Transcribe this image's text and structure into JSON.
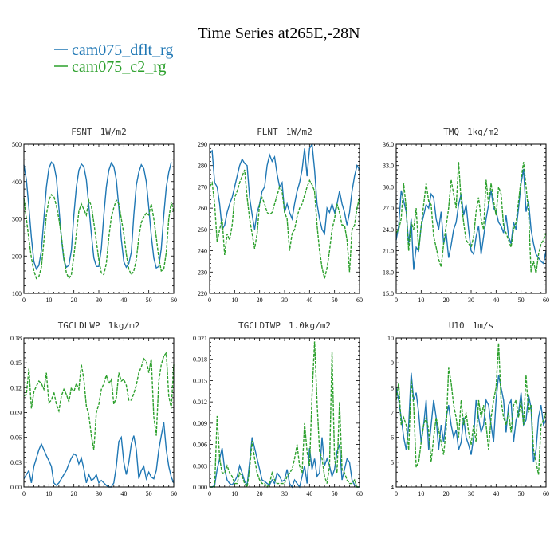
{
  "title": "Time Series at265E,-28N",
  "legend": [
    {
      "label": "cam075_dflt_rg",
      "color": "#1f77b4"
    },
    {
      "label": "cam075_c2_rg",
      "color": "#2ca02c"
    }
  ],
  "chart_data": [
    {
      "type": "line",
      "title": "FSNT",
      "units": "1W/m2",
      "xlim": [
        0,
        60
      ],
      "xticks": [
        0,
        10,
        20,
        30,
        40,
        50,
        60
      ],
      "ylim": [
        100,
        500
      ],
      "yticks": [
        100,
        200,
        300,
        400,
        500
      ],
      "ytick_labels": [
        "100",
        "200",
        "300",
        "400",
        "500"
      ],
      "series": [
        {
          "name": "cam075_dflt_rg",
          "values": [
            445,
            405,
            330,
            250,
            185,
            165,
            175,
            215,
            300,
            385,
            435,
            452,
            445,
            410,
            330,
            250,
            190,
            170,
            175,
            215,
            310,
            385,
            430,
            447,
            440,
            405,
            335,
            260,
            195,
            172,
            172,
            220,
            310,
            385,
            430,
            450,
            440,
            405,
            330,
            245,
            185,
            170,
            180,
            210,
            310,
            390,
            425,
            445,
            435,
            400,
            330,
            255,
            195,
            168,
            172,
            220,
            310,
            385,
            425,
            452
          ]
        },
        {
          "name": "cam075_c2_rg",
          "values": [
            355,
            300,
            245,
            195,
            160,
            140,
            145,
            170,
            240,
            310,
            350,
            365,
            360,
            335,
            300,
            255,
            195,
            155,
            140,
            150,
            200,
            260,
            320,
            340,
            325,
            310,
            350,
            335,
            290,
            240,
            190,
            155,
            150,
            180,
            250,
            305,
            330,
            350,
            340,
            300,
            260,
            205,
            165,
            150,
            160,
            190,
            250,
            290,
            305,
            315,
            310,
            340,
            300,
            250,
            195,
            160,
            165,
            210,
            300,
            345,
            320
          ]
        }
      ]
    },
    {
      "type": "line",
      "title": "FLNT",
      "units": "1W/m2",
      "xlim": [
        0,
        60
      ],
      "xticks": [
        0,
        10,
        20,
        30,
        40,
        50,
        60
      ],
      "ylim": [
        220,
        290
      ],
      "yticks": [
        220,
        230,
        240,
        250,
        260,
        270,
        280,
        290
      ],
      "ytick_labels": [
        "220",
        "230",
        "240",
        "250",
        "260",
        "270",
        "280",
        "290"
      ],
      "series": [
        {
          "name": "cam075_dflt_rg",
          "values": [
            286,
            287,
            272,
            270,
            262,
            250,
            252,
            258,
            262,
            265,
            270,
            275,
            280,
            283,
            281,
            280,
            265,
            257,
            250,
            258,
            262,
            268,
            270,
            280,
            285,
            282,
            284,
            276,
            270,
            272,
            258,
            262,
            258,
            255,
            262,
            268,
            272,
            278,
            288,
            275,
            288,
            290,
            278,
            262,
            255,
            250,
            248,
            260,
            258,
            262,
            258,
            262,
            268,
            262,
            258,
            252,
            258,
            268,
            275,
            280,
            278
          ]
        },
        {
          "name": "cam075_c2_rg",
          "values": [
            270,
            272,
            262,
            244,
            250,
            255,
            238,
            248,
            245,
            252,
            265,
            268,
            272,
            275,
            278,
            265,
            255,
            248,
            241,
            248,
            262,
            265,
            262,
            258,
            257,
            258,
            262,
            266,
            270,
            268,
            258,
            255,
            240,
            248,
            250,
            256,
            260,
            262,
            266,
            270,
            273,
            271,
            268,
            252,
            240,
            232,
            227,
            232,
            240,
            250,
            255,
            262,
            258,
            252,
            252,
            245,
            230,
            250,
            252,
            260,
            265
          ]
        }
      ]
    },
    {
      "type": "line",
      "title": "TMQ",
      "units": "1kg/m2",
      "xlim": [
        0,
        60
      ],
      "xticks": [
        0,
        10,
        20,
        30,
        40,
        50,
        60
      ],
      "ylim": [
        15,
        36
      ],
      "yticks": [
        15,
        18,
        21,
        24,
        27,
        30,
        33,
        36
      ],
      "ytick_labels": [
        "15.0",
        "18.0",
        "21.0",
        "24.0",
        "27.0",
        "30.0",
        "33.0",
        "36.0"
      ],
      "series": [
        {
          "name": "cam075_dflt_rg",
          "values": [
            22.5,
            24.5,
            29.5,
            28.0,
            26.5,
            22.0,
            25.5,
            18.3,
            21.5,
            21.0,
            24.5,
            26.0,
            27.5,
            27.0,
            29.0,
            28.5,
            25.5,
            24.0,
            26.5,
            22.0,
            23.5,
            20.0,
            21.8,
            24.0,
            25.0,
            27.5,
            29.0,
            26.0,
            27.5,
            24.0,
            21.0,
            20.5,
            23.0,
            24.5,
            20.5,
            23.0,
            25.5,
            27.5,
            29.5,
            27.0,
            26.5,
            25.0,
            24.5,
            23.5,
            26.0,
            23.0,
            22.0,
            25.0,
            24.0,
            27.0,
            30.5,
            32.5,
            26.5,
            28.0,
            24.0,
            22.0,
            20.5,
            20.0,
            19.5,
            19.2,
            21.0
          ]
        },
        {
          "name": "cam075_c2_rg",
          "values": [
            23.5,
            24.0,
            25.5,
            30.5,
            27.0,
            21.0,
            25.0,
            24.0,
            27.0,
            21.0,
            24.5,
            27.5,
            30.5,
            28.0,
            27.5,
            23.0,
            21.5,
            19.8,
            18.7,
            22.0,
            24.5,
            27.0,
            31.0,
            29.0,
            27.0,
            33.5,
            28.0,
            25.0,
            22.5,
            22.0,
            21.5,
            23.0,
            26.5,
            28.5,
            25.5,
            24.0,
            31.0,
            27.5,
            30.5,
            28.0,
            26.0,
            30.0,
            29.0,
            24.5,
            23.5,
            22.5,
            21.5,
            24.0,
            25.0,
            28.0,
            31.0,
            33.5,
            30.0,
            26.5,
            18.0,
            19.5,
            17.8,
            20.5,
            22.0,
            22.5,
            23.5
          ]
        }
      ]
    },
    {
      "type": "line",
      "title": "TGCLDLWP",
      "units": "1kg/m2",
      "xlim": [
        0,
        60
      ],
      "xticks": [
        0,
        10,
        20,
        30,
        40,
        50,
        60
      ],
      "ylim": [
        0,
        0.18
      ],
      "yticks": [
        0,
        0.03,
        0.06,
        0.09,
        0.12,
        0.15,
        0.18
      ],
      "ytick_labels": [
        "0.00",
        "0.03",
        "0.06",
        "0.09",
        "0.12",
        "0.15",
        "0.18"
      ],
      "series": [
        {
          "name": "cam075_dflt_rg",
          "values": [
            0.01,
            0.015,
            0.02,
            0.005,
            0.025,
            0.035,
            0.045,
            0.052,
            0.045,
            0.038,
            0.032,
            0.025,
            0.005,
            0.002,
            0.005,
            0.01,
            0.015,
            0.02,
            0.028,
            0.035,
            0.04,
            0.038,
            0.028,
            0.035,
            0.022,
            0.005,
            0.015,
            0.008,
            0.01,
            0.015,
            0.005,
            0.008,
            0.005,
            0.002,
            0.0,
            0.0,
            0.005,
            0.025,
            0.055,
            0.06,
            0.03,
            0.015,
            0.03,
            0.052,
            0.062,
            0.045,
            0.01,
            0.02,
            0.025,
            0.01,
            0.018,
            0.012,
            0.01,
            0.02,
            0.045,
            0.062,
            0.078,
            0.045,
            0.025,
            0.012,
            0.005
          ]
        },
        {
          "name": "cam075_c2_rg",
          "values": [
            0.11,
            0.112,
            0.143,
            0.095,
            0.115,
            0.122,
            0.128,
            0.125,
            0.118,
            0.138,
            0.102,
            0.105,
            0.115,
            0.1,
            0.092,
            0.11,
            0.118,
            0.112,
            0.103,
            0.12,
            0.115,
            0.125,
            0.118,
            0.148,
            0.13,
            0.098,
            0.087,
            0.062,
            0.045,
            0.09,
            0.1,
            0.118,
            0.125,
            0.135,
            0.125,
            0.13,
            0.1,
            0.108,
            0.138,
            0.128,
            0.13,
            0.123,
            0.105,
            0.105,
            0.113,
            0.123,
            0.138,
            0.145,
            0.155,
            0.152,
            0.138,
            0.155,
            0.085,
            0.062,
            0.128,
            0.148,
            0.158,
            0.162,
            0.11,
            0.095,
            0.148
          ]
        }
      ]
    },
    {
      "type": "line",
      "title": "TGCLDIWP",
      "units": "1.0kg/m2",
      "xlim": [
        0,
        60
      ],
      "xticks": [
        0,
        10,
        20,
        30,
        40,
        50,
        60
      ],
      "ylim": [
        0,
        0.021
      ],
      "yticks": [
        0,
        0.003,
        0.006,
        0.009,
        0.012,
        0.015,
        0.018,
        0.021
      ],
      "ytick_labels": [
        "0.000",
        "0.003",
        "0.006",
        "0.009",
        "0.012",
        "0.015",
        "0.018",
        "0.021"
      ],
      "series": [
        {
          "name": "cam075_dflt_rg",
          "values": [
            0.0,
            0.0,
            0.0002,
            0.0025,
            0.004,
            0.0055,
            0.0025,
            0.001,
            0.0005,
            0.0003,
            0.0008,
            0.0015,
            0.003,
            0.002,
            0.0008,
            0.0003,
            0.0035,
            0.007,
            0.0055,
            0.004,
            0.0025,
            0.001,
            0.0008,
            0.0005,
            0.0003,
            0.001,
            0.0005,
            0.002,
            0.0015,
            0.0008,
            0.001,
            0.0025,
            0.0005,
            0.0,
            0.001,
            0.0005,
            0.0,
            0.0015,
            0.003,
            0.0005,
            0.0055,
            0.0025,
            0.004,
            0.0015,
            0.002,
            0.007,
            0.003,
            0.004,
            0.003,
            0.0015,
            0.0025,
            0.005,
            0.006,
            0.001,
            0.0025,
            0.004,
            0.0035,
            0.001,
            0.0003,
            0.0,
            0.0
          ]
        },
        {
          "name": "cam075_c2_rg",
          "values": [
            0.0,
            0.0,
            0.0,
            0.01,
            0.004,
            0.002,
            0.002,
            0.003,
            0.002,
            0.0015,
            0.0005,
            0.0005,
            0.002,
            0.0015,
            0.0005,
            0.0,
            0.0025,
            0.0065,
            0.004,
            0.002,
            0.001,
            0.0005,
            0.0005,
            0.0,
            0.0005,
            0.002,
            0.001,
            0.0005,
            0.0005,
            0.0005,
            0.0005,
            0.0015,
            0.002,
            0.0025,
            0.004,
            0.006,
            0.003,
            0.002,
            0.009,
            0.005,
            0.003,
            0.013,
            0.0205,
            0.012,
            0.005,
            0.004,
            0.0015,
            0.0005,
            0.003,
            0.019,
            0.004,
            0.002,
            0.012,
            0.0025,
            0.002,
            0.001,
            0.0005,
            0.0005,
            0.001,
            0.0,
            0.0
          ]
        }
      ]
    },
    {
      "type": "line",
      "title": "U10",
      "units": "1m/s",
      "xlim": [
        0,
        60
      ],
      "xticks": [
        0,
        10,
        20,
        30,
        40,
        50,
        60
      ],
      "ylim": [
        4,
        10
      ],
      "yticks": [
        4,
        5,
        6,
        7,
        8,
        9,
        10
      ],
      "ytick_labels": [
        "4",
        "5",
        "6",
        "7",
        "8",
        "9",
        "10"
      ],
      "series": [
        {
          "name": "cam075_dflt_rg",
          "values": [
            8.0,
            7.5,
            6.8,
            6.0,
            5.5,
            6.5,
            8.6,
            7.5,
            7.8,
            7.0,
            5.8,
            6.5,
            7.5,
            5.5,
            6.5,
            7.5,
            6.8,
            5.5,
            6.5,
            5.8,
            6.8,
            7.3,
            6.5,
            6.0,
            6.3,
            5.5,
            5.8,
            6.8,
            6.0,
            5.7,
            5.3,
            6.0,
            7.5,
            6.8,
            6.2,
            6.5,
            7.5,
            7.3,
            6.5,
            5.8,
            7.5,
            8.5,
            8.0,
            7.5,
            6.2,
            7.3,
            7.5,
            5.8,
            6.7,
            7.0,
            7.8,
            6.5,
            6.7,
            7.7,
            7.2,
            5.0,
            5.5,
            6.8,
            7.3,
            6.5,
            6.7
          ]
        },
        {
          "name": "cam075_c2_rg",
          "values": [
            7.5,
            8.2,
            6.5,
            6.8,
            6.5,
            5.5,
            8.3,
            7.3,
            4.8,
            5.0,
            5.8,
            6.5,
            6.8,
            6.3,
            5.0,
            6.0,
            6.8,
            6.3,
            5.8,
            5.3,
            6.3,
            8.8,
            8.2,
            7.3,
            6.8,
            6.0,
            7.5,
            6.5,
            7.0,
            6.2,
            5.7,
            6.5,
            5.8,
            7.5,
            6.8,
            7.3,
            6.5,
            5.5,
            6.8,
            7.5,
            8.0,
            9.8,
            7.5,
            6.8,
            6.5,
            7.0,
            6.2,
            7.3,
            7.5,
            6.8,
            7.5,
            6.5,
            8.5,
            7.0,
            7.3,
            5.5,
            5.0,
            4.5,
            6.5,
            6.7,
            7.0
          ]
        }
      ]
    }
  ]
}
